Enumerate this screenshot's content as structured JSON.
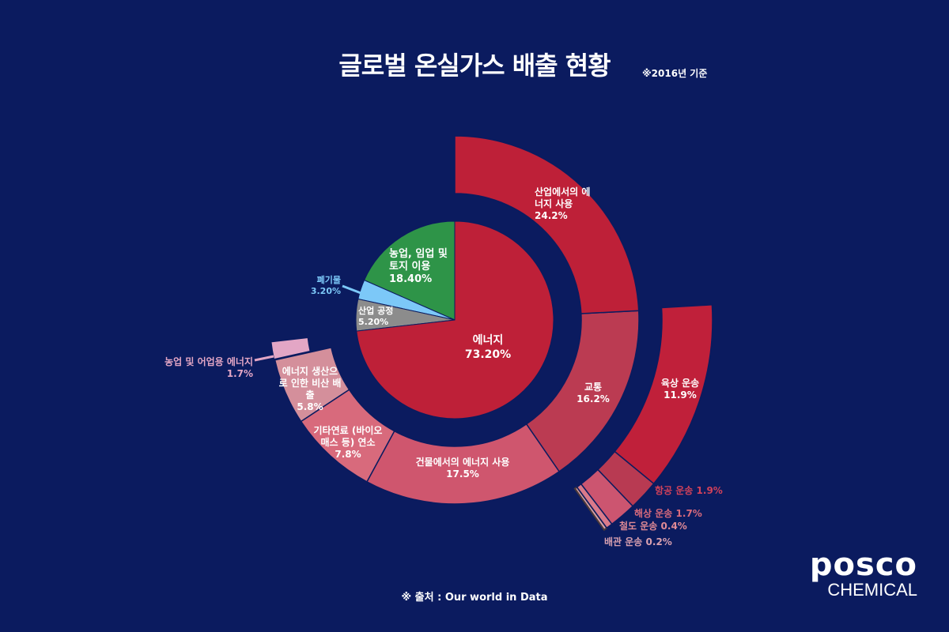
{
  "title": "글로벌 온실가스 배출 현황",
  "subtitle": "※2016년 기준",
  "source": "※ 출처 : Our world in Data",
  "logo": {
    "main": "posco",
    "sub": "CHEMICAL"
  },
  "background": "#0b1b5f",
  "chart_data": {
    "type": "pie",
    "unit": "%",
    "inner": [
      {
        "label": "에너지",
        "value": 73.2,
        "display": "73.20%",
        "color": "#be2038"
      },
      {
        "label": "산업 공정",
        "value": 5.2,
        "display": "5.20%",
        "color": "#8c8c8c"
      },
      {
        "label": "폐기물",
        "value": 3.2,
        "display": "3.20%",
        "color": "#7cc8f8"
      },
      {
        "label": "농업, 임업 및 토지 이용",
        "value": 18.4,
        "display": "18.40%",
        "color": "#2e9448"
      }
    ],
    "energy_breakdown": [
      {
        "label": "산업에서의 에너지 사용",
        "value": 24.2,
        "display": "24.2%",
        "color": "#be2038"
      },
      {
        "label": "교통",
        "value": 16.2,
        "display": "16.2%",
        "color": "#bb3b52"
      },
      {
        "label": "건물에서의 에너지 사용",
        "value": 17.5,
        "display": "17.5%",
        "color": "#cf566e"
      },
      {
        "label": "기타연료 (바이오매스 등) 연소",
        "value": 7.8,
        "display": "7.8%",
        "color": "#d86a7c"
      },
      {
        "label": "에너지 생산으로 인한 비산 배출",
        "value": 5.8,
        "display": "5.8%",
        "color": "#d48f9b"
      },
      {
        "label": "농업 및 어업용 에너지",
        "value": 1.7,
        "display": "1.7%",
        "color": "#e3a6c5"
      }
    ],
    "transport_breakdown": [
      {
        "label": "육상 운송",
        "value": 11.9,
        "display": "11.9%",
        "color": "#c0203a"
      },
      {
        "label": "항공 운송",
        "value": 1.9,
        "display": "1.9%",
        "color": "#b83a52"
      },
      {
        "label": "해상 운송",
        "value": 1.7,
        "display": "1.7%",
        "color": "#cc5570"
      },
      {
        "label": "철도 운송",
        "value": 0.4,
        "display": "0.4%",
        "color": "#d97a8a"
      },
      {
        "label": "배관 운송",
        "value": 0.2,
        "display": "0.2%",
        "color": "#d8a0a8"
      }
    ]
  }
}
